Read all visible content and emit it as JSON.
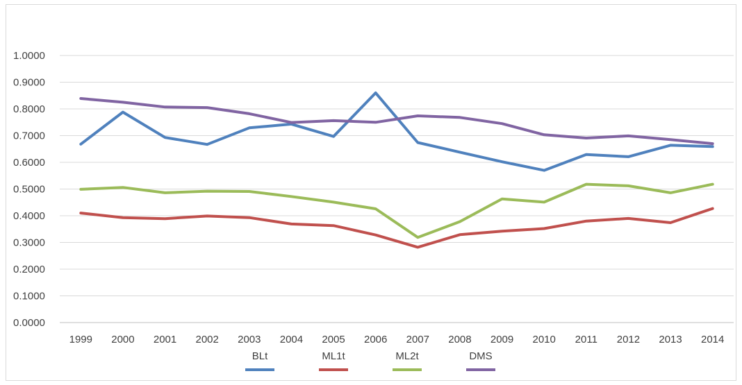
{
  "chart_data": {
    "type": "line",
    "title": "",
    "xlabel": "",
    "ylabel": "",
    "categories": [
      "1999",
      "2000",
      "2001",
      "2002",
      "2003",
      "2004",
      "2005",
      "2006",
      "2007",
      "2008",
      "2009",
      "2010",
      "2011",
      "2012",
      "2013",
      "2014"
    ],
    "y_tick_labels": [
      "1.0000",
      "0.9000",
      "0.8000",
      "0.7000",
      "0.6000",
      "0.5000",
      "0.4000",
      "0.3000",
      "0.2000",
      "0.1000",
      "0.0000"
    ],
    "ylim": [
      0,
      1
    ],
    "grid": true,
    "legend_position": "bottom",
    "series": [
      {
        "name": "BLt",
        "color": "#4f81bd",
        "values": [
          0.668,
          0.788,
          0.693,
          0.667,
          0.729,
          0.743,
          0.697,
          0.86,
          0.674,
          0.638,
          0.602,
          0.57,
          0.629,
          0.621,
          0.664,
          0.659
        ]
      },
      {
        "name": "ML1t",
        "color": "#c0504d",
        "values": [
          0.41,
          0.393,
          0.389,
          0.399,
          0.393,
          0.369,
          0.363,
          0.328,
          0.282,
          0.329,
          0.342,
          0.352,
          0.38,
          0.39,
          0.374,
          0.427
        ]
      },
      {
        "name": "ML2t",
        "color": "#9bbb59",
        "values": [
          0.499,
          0.506,
          0.486,
          0.492,
          0.491,
          0.472,
          0.451,
          0.426,
          0.319,
          0.378,
          0.463,
          0.451,
          0.518,
          0.512,
          0.486,
          0.518
        ]
      },
      {
        "name": "DMS",
        "color": "#8064a2",
        "values": [
          0.839,
          0.825,
          0.807,
          0.805,
          0.782,
          0.749,
          0.756,
          0.75,
          0.774,
          0.768,
          0.745,
          0.703,
          0.691,
          0.699,
          0.685,
          0.67
        ]
      }
    ]
  }
}
